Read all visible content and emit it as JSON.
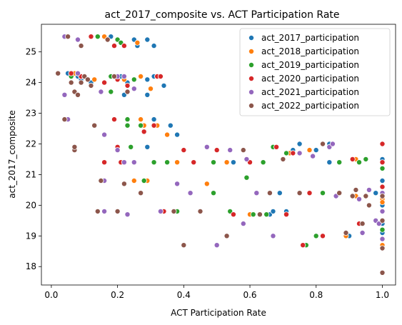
{
  "chart_data": {
    "type": "scatter",
    "title": "act_2017_composite vs. ACT Participation Rate",
    "xlabel": "ACT Participation Rate",
    "ylabel": "act_2017_composite",
    "xlim": [
      -0.03,
      1.04
    ],
    "ylim": [
      17.4,
      25.9
    ],
    "xticks": [
      0.0,
      0.2,
      0.4,
      0.6,
      0.8,
      1.0
    ],
    "xtick_labels": [
      "0.0",
      "0.2",
      "0.4",
      "0.6",
      "0.8",
      "1.0"
    ],
    "yticks": [
      18,
      19,
      20,
      21,
      22,
      23,
      24,
      25
    ],
    "ytick_labels": [
      "18",
      "19",
      "20",
      "21",
      "22",
      "23",
      "24",
      "25"
    ],
    "grid": false,
    "legend_position": "top-right",
    "series": [
      {
        "name": "act_2017_participation",
        "color": "#1f77b4",
        "points": [
          [
            0.05,
            24.3
          ],
          [
            0.06,
            24.3
          ],
          [
            0.08,
            24.2
          ],
          [
            0.09,
            24.1
          ],
          [
            0.12,
            24.0
          ],
          [
            0.18,
            25.5
          ],
          [
            0.18,
            24.2
          ],
          [
            0.21,
            24.2
          ],
          [
            0.22,
            23.6
          ],
          [
            0.23,
            24.0
          ],
          [
            0.25,
            25.4
          ],
          [
            0.26,
            25.2
          ],
          [
            0.29,
            25.4
          ],
          [
            0.31,
            25.2
          ],
          [
            0.29,
            24.1
          ],
          [
            0.31,
            24.2
          ],
          [
            0.32,
            24.2
          ],
          [
            0.29,
            23.6
          ],
          [
            0.34,
            23.9
          ],
          [
            0.36,
            22.6
          ],
          [
            0.31,
            22.8
          ],
          [
            0.38,
            22.3
          ],
          [
            0.29,
            21.9
          ],
          [
            0.4,
            21.8
          ],
          [
            0.62,
            20.4
          ],
          [
            0.65,
            19.7
          ],
          [
            0.66,
            19.7
          ],
          [
            0.67,
            19.8
          ],
          [
            0.69,
            20.4
          ],
          [
            0.71,
            19.8
          ],
          [
            0.73,
            21.8
          ],
          [
            0.75,
            22.0
          ],
          [
            0.8,
            21.8
          ],
          [
            0.84,
            22.0
          ],
          [
            0.84,
            21.4
          ],
          [
            0.93,
            21.4
          ],
          [
            1.0,
            21.5
          ],
          [
            1.0,
            20.8
          ],
          [
            1.0,
            20.3
          ],
          [
            1.0,
            20.0
          ],
          [
            1.0,
            19.4
          ],
          [
            1.0,
            19.2
          ],
          [
            1.0,
            19.1
          ],
          [
            1.0,
            18.6
          ],
          [
            0.98,
            20.4
          ],
          [
            0.9,
            19.0
          ],
          [
            0.55,
            21.4
          ]
        ]
      },
      {
        "name": "act_2018_participation",
        "color": "#ff7f0e",
        "points": [
          [
            0.07,
            24.3
          ],
          [
            0.08,
            24.3
          ],
          [
            0.13,
            24.1
          ],
          [
            0.16,
            25.5
          ],
          [
            0.22,
            24.1
          ],
          [
            0.26,
            25.3
          ],
          [
            0.27,
            24.2
          ],
          [
            0.27,
            22.8
          ],
          [
            0.28,
            22.6
          ],
          [
            0.3,
            23.8
          ],
          [
            0.32,
            22.6
          ],
          [
            0.35,
            22.3
          ],
          [
            0.29,
            20.8
          ],
          [
            0.38,
            21.4
          ],
          [
            0.47,
            20.7
          ],
          [
            0.53,
            21.4
          ],
          [
            0.6,
            19.7
          ],
          [
            0.66,
            20.4
          ],
          [
            0.68,
            21.9
          ],
          [
            0.72,
            21.7
          ],
          [
            0.75,
            21.7
          ],
          [
            0.78,
            21.8
          ],
          [
            0.89,
            19.0
          ],
          [
            0.92,
            20.3
          ],
          [
            0.92,
            21.5
          ],
          [
            0.98,
            19.5
          ],
          [
            1.0,
            20.2
          ],
          [
            1.0,
            20.1
          ],
          [
            1.0,
            18.7
          ],
          [
            0.25,
            20.8
          ]
        ]
      },
      {
        "name": "act_2019_participation",
        "color": "#2ca02c",
        "points": [
          [
            0.06,
            24.2
          ],
          [
            0.09,
            24.2
          ],
          [
            0.14,
            25.5
          ],
          [
            0.2,
            25.4
          ],
          [
            0.21,
            25.3
          ],
          [
            0.18,
            24.2
          ],
          [
            0.18,
            23.7
          ],
          [
            0.23,
            22.8
          ],
          [
            0.23,
            22.6
          ],
          [
            0.24,
            21.9
          ],
          [
            0.25,
            24.1
          ],
          [
            0.27,
            22.6
          ],
          [
            0.28,
            20.8
          ],
          [
            0.31,
            21.4
          ],
          [
            0.35,
            21.4
          ],
          [
            0.38,
            19.8
          ],
          [
            0.49,
            21.4
          ],
          [
            0.49,
            20.4
          ],
          [
            0.54,
            19.8
          ],
          [
            0.59,
            20.9
          ],
          [
            0.61,
            19.7
          ],
          [
            0.64,
            21.4
          ],
          [
            0.65,
            19.7
          ],
          [
            0.67,
            21.9
          ],
          [
            0.71,
            21.7
          ],
          [
            0.77,
            18.7
          ],
          [
            0.8,
            19.0
          ],
          [
            0.82,
            20.4
          ],
          [
            0.87,
            21.4
          ],
          [
            0.93,
            21.4
          ],
          [
            0.95,
            21.5
          ],
          [
            1.0,
            19.2
          ],
          [
            1.0,
            21.2
          ]
        ]
      },
      {
        "name": "act_2020_participation",
        "color": "#d62728",
        "points": [
          [
            0.06,
            24.3
          ],
          [
            0.09,
            24.2
          ],
          [
            0.1,
            24.2
          ],
          [
            0.12,
            25.5
          ],
          [
            0.16,
            24.0
          ],
          [
            0.19,
            25.2
          ],
          [
            0.2,
            24.1
          ],
          [
            0.22,
            25.2
          ],
          [
            0.23,
            23.9
          ],
          [
            0.31,
            22.6
          ],
          [
            0.19,
            22.8
          ],
          [
            0.2,
            21.9
          ],
          [
            0.21,
            21.4
          ],
          [
            0.28,
            22.4
          ],
          [
            0.32,
            24.2
          ],
          [
            0.33,
            24.2
          ],
          [
            0.33,
            19.8
          ],
          [
            0.34,
            19.8
          ],
          [
            0.38,
            20.7
          ],
          [
            0.4,
            21.8
          ],
          [
            0.43,
            21.4
          ],
          [
            0.55,
            19.7
          ],
          [
            0.6,
            21.4
          ],
          [
            0.68,
            21.9
          ],
          [
            0.71,
            19.7
          ],
          [
            0.73,
            21.7
          ],
          [
            0.76,
            18.7
          ],
          [
            0.78,
            20.4
          ],
          [
            0.82,
            19.0
          ],
          [
            0.91,
            21.5
          ],
          [
            1.0,
            22.0
          ],
          [
            1.0,
            21.4
          ],
          [
            1.0,
            20.6
          ],
          [
            1.0,
            19.5
          ],
          [
            0.93,
            19.4
          ],
          [
            0.5,
            21.8
          ],
          [
            0.16,
            21.4
          ]
        ]
      },
      {
        "name": "act_2021_participation",
        "color": "#9467bd",
        "points": [
          [
            0.04,
            23.6
          ],
          [
            0.04,
            25.5
          ],
          [
            0.05,
            22.8
          ],
          [
            0.08,
            24.3
          ],
          [
            0.08,
            25.4
          ],
          [
            0.15,
            23.7
          ],
          [
            0.16,
            22.3
          ],
          [
            0.16,
            20.8
          ],
          [
            0.16,
            19.8
          ],
          [
            0.2,
            24.2
          ],
          [
            0.2,
            21.8
          ],
          [
            0.22,
            24.2
          ],
          [
            0.22,
            21.4
          ],
          [
            0.23,
            19.7
          ],
          [
            0.25,
            21.4
          ],
          [
            0.25,
            23.8
          ],
          [
            0.33,
            19.8
          ],
          [
            0.38,
            20.7
          ],
          [
            0.42,
            20.4
          ],
          [
            0.5,
            18.7
          ],
          [
            0.54,
            21.8
          ],
          [
            0.58,
            19.4
          ],
          [
            0.59,
            21.5
          ],
          [
            0.62,
            20.4
          ],
          [
            0.66,
            20.4
          ],
          [
            0.67,
            19.0
          ],
          [
            0.75,
            21.7
          ],
          [
            0.79,
            21.6
          ],
          [
            0.84,
            21.9
          ],
          [
            0.85,
            22.0
          ],
          [
            0.86,
            20.3
          ],
          [
            0.93,
            20.2
          ],
          [
            0.94,
            19.1
          ],
          [
            0.96,
            20.5
          ],
          [
            0.98,
            19.5
          ],
          [
            0.99,
            19.4
          ],
          [
            1.0,
            19.8
          ],
          [
            1.0,
            20.4
          ],
          [
            1.0,
            18.9
          ],
          [
            0.47,
            21.9
          ]
        ]
      },
      {
        "name": "act_2022_participation",
        "color": "#8c564b",
        "points": [
          [
            0.02,
            24.3
          ],
          [
            0.04,
            22.8
          ],
          [
            0.05,
            25.5
          ],
          [
            0.06,
            24.0
          ],
          [
            0.07,
            21.8
          ],
          [
            0.07,
            21.9
          ],
          [
            0.07,
            23.7
          ],
          [
            0.08,
            23.6
          ],
          [
            0.09,
            25.2
          ],
          [
            0.09,
            24.0
          ],
          [
            0.1,
            24.2
          ],
          [
            0.11,
            24.1
          ],
          [
            0.12,
            23.9
          ],
          [
            0.13,
            22.6
          ],
          [
            0.14,
            19.8
          ],
          [
            0.15,
            20.8
          ],
          [
            0.17,
            25.4
          ],
          [
            0.19,
            24.2
          ],
          [
            0.2,
            19.8
          ],
          [
            0.22,
            20.7
          ],
          [
            0.23,
            23.7
          ],
          [
            0.27,
            20.4
          ],
          [
            0.37,
            19.8
          ],
          [
            0.4,
            18.7
          ],
          [
            0.45,
            19.8
          ],
          [
            0.53,
            19.0
          ],
          [
            0.58,
            21.8
          ],
          [
            0.63,
            19.7
          ],
          [
            0.66,
            20.4
          ],
          [
            0.7,
            21.5
          ],
          [
            0.75,
            20.4
          ],
          [
            0.82,
            22.0
          ],
          [
            0.87,
            20.4
          ],
          [
            0.89,
            19.1
          ],
          [
            0.91,
            20.3
          ],
          [
            0.92,
            20.5
          ],
          [
            0.94,
            19.4
          ],
          [
            0.95,
            20.3
          ],
          [
            0.96,
            20.0
          ],
          [
            1.0,
            20.3
          ],
          [
            1.0,
            19.5
          ],
          [
            1.0,
            18.6
          ],
          [
            1.0,
            17.8
          ]
        ]
      }
    ]
  }
}
